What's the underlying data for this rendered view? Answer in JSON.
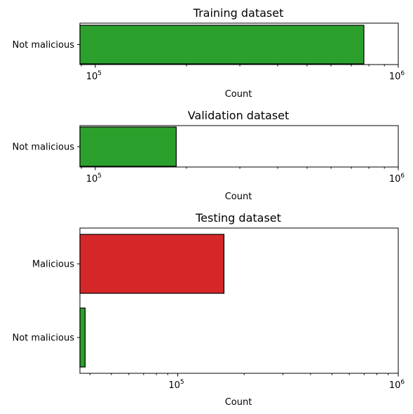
{
  "chart_data": [
    {
      "type": "bar",
      "orientation": "horizontal",
      "title": "Training dataset",
      "xlabel": "Count",
      "ylabel": "",
      "xscale": "log",
      "xlim": [
        89000,
        1000000
      ],
      "categories": [
        "Not malicious"
      ],
      "values": [
        770000
      ],
      "colors": [
        "#2ca02c"
      ],
      "major_ticks": [
        {
          "base": "10",
          "exp": "5",
          "value": 100000
        },
        {
          "base": "10",
          "exp": "6",
          "value": 1000000
        }
      ]
    },
    {
      "type": "bar",
      "orientation": "horizontal",
      "title": "Validation dataset",
      "xlabel": "Count",
      "ylabel": "",
      "xscale": "log",
      "xlim": [
        89000,
        1000000
      ],
      "categories": [
        "Not malicious"
      ],
      "values": [
        185000
      ],
      "colors": [
        "#2ca02c"
      ],
      "major_ticks": [
        {
          "base": "10",
          "exp": "5",
          "value": 100000
        },
        {
          "base": "10",
          "exp": "6",
          "value": 1000000
        }
      ]
    },
    {
      "type": "bar",
      "orientation": "horizontal",
      "title": "Testing dataset",
      "xlabel": "Count",
      "ylabel": "",
      "xscale": "log",
      "xlim": [
        36000,
        1000000
      ],
      "categories": [
        "Malicious",
        "Not malicious"
      ],
      "values": [
        162000,
        38000
      ],
      "colors": [
        "#d62728",
        "#2ca02c"
      ],
      "major_ticks": [
        {
          "base": "10",
          "exp": "5",
          "value": 100000
        },
        {
          "base": "10",
          "exp": "6",
          "value": 1000000
        }
      ]
    }
  ]
}
